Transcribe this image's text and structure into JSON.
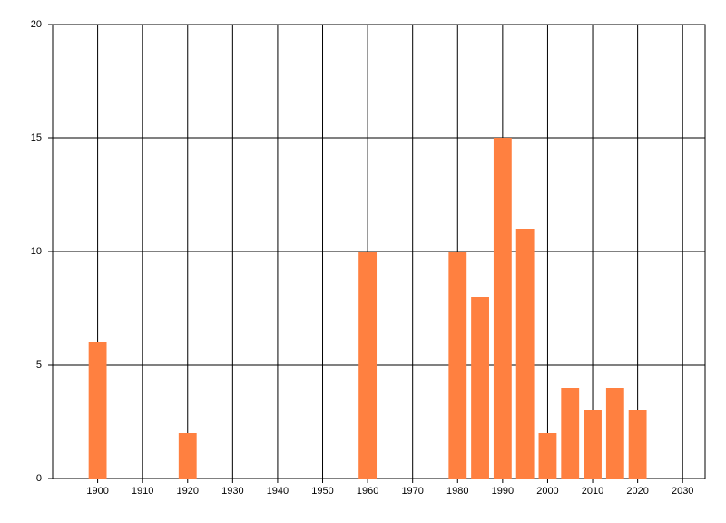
{
  "chart_data": {
    "type": "bar",
    "x": [
      1900,
      1920,
      1960,
      1980,
      1985,
      1990,
      1995,
      2000,
      2005,
      2010,
      2015,
      2020
    ],
    "values": [
      6,
      2,
      10,
      10,
      8,
      15,
      11,
      2,
      4,
      3,
      4,
      3
    ],
    "color": "#ff8040",
    "xlim": [
      1890,
      2035
    ],
    "xticks": [
      1900,
      1910,
      1920,
      1930,
      1940,
      1950,
      1960,
      1970,
      1980,
      1990,
      2000,
      2010,
      2020,
      2030
    ],
    "ylim": [
      0,
      20
    ],
    "yticks": [
      0,
      5,
      10,
      15,
      20
    ],
    "bar_width": 4,
    "grid": true
  }
}
